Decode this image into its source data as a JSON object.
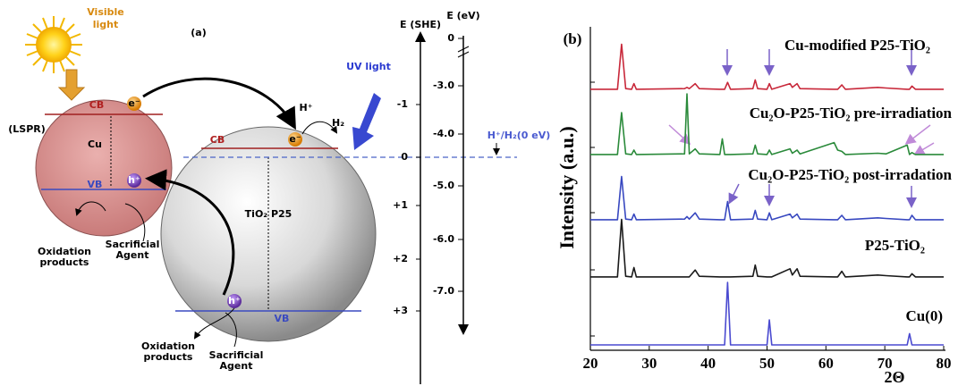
{
  "diagram": {
    "panel_label": "(a)",
    "light_visible": [
      "Visible",
      "light"
    ],
    "light_uv": "UV light",
    "lspr": "(LSPR)",
    "cu": {
      "name": "Cu",
      "cb": "CB",
      "vb": "VB",
      "electron": "e⁻",
      "hole": "h⁺",
      "oxidation_products": [
        "Oxidation",
        "products"
      ],
      "sacrificial_agent": [
        "Sacrificial",
        "Agent"
      ]
    },
    "tio2": {
      "name": "TiO₂ P25",
      "cb": "CB",
      "vb": "VB",
      "electron": "e⁻",
      "hole": "h⁺",
      "oxidation_products": [
        "Oxidation",
        "products"
      ],
      "sacrificial_agent": [
        "Sacrificial",
        "Agent"
      ]
    },
    "proton": "H⁺",
    "hydrogen": "H₂",
    "she_axis": {
      "title": "E (SHE)",
      "ticks": [
        "-1",
        "0",
        "+1",
        "+2",
        "+3"
      ]
    },
    "ev_axis": {
      "title": "E (eV)",
      "ticks": [
        "0",
        "-3.0",
        "-4.0",
        "-5.0",
        "-6.0",
        "-7.0"
      ]
    },
    "reference": "H⁺/H₂(0 eV)"
  },
  "chart_data": {
    "type": "line",
    "panel_label": "(b)",
    "x_label": "2Θ",
    "y_label": "Intensity (a.u.)",
    "x": [
      20,
      24.6,
      25.3,
      26,
      27.0,
      27.4,
      27.8,
      36.0,
      36.4,
      36.8,
      37.8,
      38.5,
      42.0,
      42.4,
      42.8,
      43.3,
      43.8,
      47.6,
      48.0,
      48.4,
      50.0,
      50.4,
      50.8,
      53.9,
      54.3,
      55.1,
      55.6,
      61.4,
      62.0,
      62.7,
      63.3,
      68.8,
      70.2,
      73.8,
      74.2,
      74.6,
      75.2,
      80
    ],
    "xlim": [
      20,
      80
    ],
    "xticks": [
      20,
      30,
      40,
      50,
      60,
      70,
      80
    ],
    "ylim": [
      0,
      100
    ],
    "series": [
      {
        "name": "Cu-modified P25-TiO₂",
        "color": "#c8283a",
        "values": [
          3,
          3,
          75,
          4,
          3,
          12,
          3,
          4,
          6,
          4,
          12,
          4,
          3,
          3,
          3,
          14,
          3,
          4,
          18,
          4,
          3,
          12,
          3,
          12,
          6,
          12,
          4,
          3,
          3,
          10,
          3,
          6,
          5,
          3,
          3,
          8,
          3,
          3
        ]
      },
      {
        "name": "Cu₂O-P25-TiO₂ pre-irradiation",
        "color": "#2a8a3a",
        "values": [
          3,
          3,
          70,
          4,
          3,
          10,
          3,
          4,
          100,
          4,
          12,
          4,
          3,
          28,
          3,
          3,
          3,
          4,
          18,
          4,
          3,
          10,
          3,
          12,
          5,
          10,
          4,
          22,
          10,
          8,
          3,
          5,
          4,
          18,
          3,
          6,
          3,
          3
        ]
      },
      {
        "name": "Cu₂O-P25-TiO₂ post-irradation",
        "color": "#3848c0",
        "values": [
          3,
          3,
          72,
          4,
          3,
          12,
          3,
          4,
          8,
          4,
          14,
          4,
          3,
          3,
          3,
          32,
          3,
          4,
          18,
          4,
          3,
          14,
          3,
          12,
          6,
          12,
          4,
          3,
          3,
          10,
          3,
          6,
          5,
          3,
          3,
          10,
          3,
          3
        ]
      },
      {
        "name": "P25-TiO₂",
        "color": "#1a1a1a",
        "values": [
          3,
          3,
          95,
          4,
          3,
          18,
          3,
          3,
          3,
          3,
          14,
          4,
          3,
          3,
          3,
          3,
          3,
          4,
          22,
          4,
          3,
          3,
          3,
          16,
          6,
          16,
          4,
          3,
          3,
          12,
          3,
          6,
          5,
          3,
          3,
          8,
          3,
          3
        ]
      },
      {
        "name": "Cu(0)",
        "color": "#4a4ad0",
        "values": [
          0,
          0,
          0,
          0,
          0,
          0,
          0,
          0,
          0,
          0,
          0,
          0,
          0,
          0,
          0,
          100,
          0,
          0,
          0,
          0,
          0,
          40,
          0,
          0,
          0,
          0,
          0,
          0,
          0,
          0,
          0,
          0,
          0,
          0,
          18,
          0,
          0,
          0
        ]
      }
    ]
  }
}
